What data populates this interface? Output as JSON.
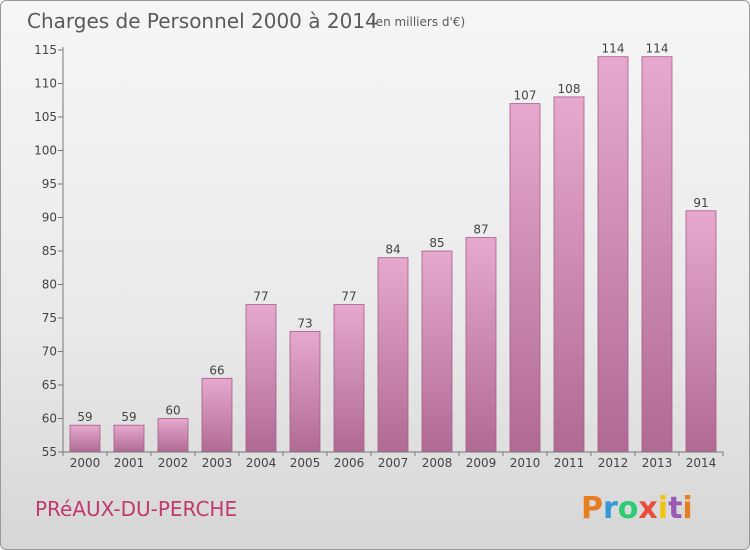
{
  "chart_data": {
    "type": "bar",
    "title": "Charges de Personnel 2000 à 2014",
    "subtitle": "(en milliers d'€)",
    "categories": [
      "2000",
      "2001",
      "2002",
      "2003",
      "2004",
      "2005",
      "2006",
      "2007",
      "2008",
      "2009",
      "2010",
      "2011",
      "2012",
      "2013",
      "2014"
    ],
    "values": [
      59,
      59,
      60,
      66,
      77,
      73,
      77,
      84,
      85,
      87,
      107,
      108,
      114,
      114,
      91
    ],
    "ylim": [
      55,
      115
    ],
    "yticks": [
      55,
      60,
      65,
      70,
      75,
      80,
      85,
      90,
      95,
      100,
      105,
      110,
      115
    ],
    "xlabel": "",
    "ylabel": "",
    "legend": "none",
    "grid": false
  },
  "footer": {
    "town": "PRéAUX-DU-PERCHE",
    "logo_letters": [
      "P",
      "r",
      "o",
      "x",
      "i",
      "t",
      "i"
    ]
  },
  "colors": {
    "bar_top": "#e6a9cd",
    "bar_bottom": "#b06a94",
    "bar_edge": "#a85a88",
    "axis": "#777777",
    "logo": [
      "#e67e22",
      "#3498db",
      "#2ecc71",
      "#e74c3c",
      "#f1c40f",
      "#9b59b6",
      "#e67e22"
    ]
  }
}
